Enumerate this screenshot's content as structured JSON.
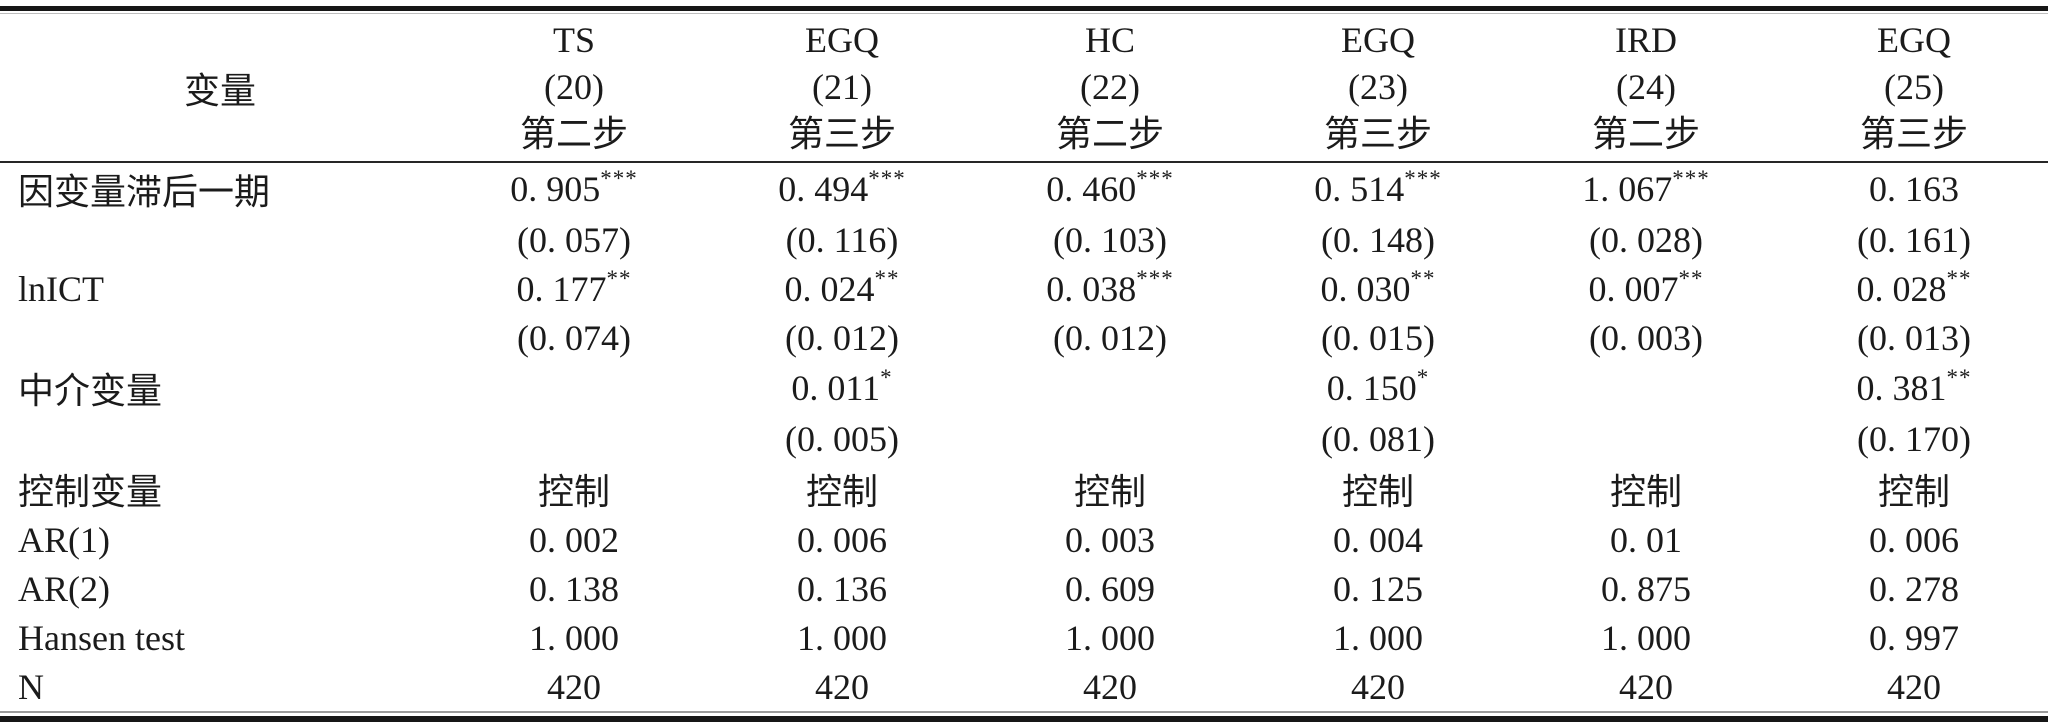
{
  "header": {
    "variable_label": "变量",
    "columns": [
      {
        "model": "TS",
        "num": "(20)",
        "step": "第二步"
      },
      {
        "model": "EGQ",
        "num": "(21)",
        "step": "第三步"
      },
      {
        "model": "HC",
        "num": "(22)",
        "step": "第二步"
      },
      {
        "model": "EGQ",
        "num": "(23)",
        "step": "第三步"
      },
      {
        "model": "IRD",
        "num": "(24)",
        "step": "第二步"
      },
      {
        "model": "EGQ",
        "num": "(25)",
        "step": "第三步"
      }
    ]
  },
  "rows": [
    {
      "label": "因变量滞后一期",
      "cells": [
        {
          "v": "0. 905",
          "sup": "***"
        },
        {
          "v": "0. 494",
          "sup": "***"
        },
        {
          "v": "0. 460",
          "sup": "***"
        },
        {
          "v": "0. 514",
          "sup": "***"
        },
        {
          "v": "1. 067",
          "sup": "***"
        },
        {
          "v": "0. 163",
          "sup": ""
        }
      ]
    },
    {
      "label": "",
      "cells": [
        {
          "v": "(0. 057)",
          "sup": ""
        },
        {
          "v": "(0. 116)",
          "sup": ""
        },
        {
          "v": "(0. 103)",
          "sup": ""
        },
        {
          "v": "(0. 148)",
          "sup": ""
        },
        {
          "v": "(0. 028)",
          "sup": ""
        },
        {
          "v": "(0. 161)",
          "sup": ""
        }
      ]
    },
    {
      "label": "lnICT",
      "cells": [
        {
          "v": "0. 177",
          "sup": "**"
        },
        {
          "v": "0. 024",
          "sup": "**"
        },
        {
          "v": "0. 038",
          "sup": "***"
        },
        {
          "v": "0. 030",
          "sup": "**"
        },
        {
          "v": "0. 007",
          "sup": "**"
        },
        {
          "v": "0. 028",
          "sup": "**"
        }
      ]
    },
    {
      "label": "",
      "cells": [
        {
          "v": "(0. 074)",
          "sup": ""
        },
        {
          "v": "(0. 012)",
          "sup": ""
        },
        {
          "v": "(0. 012)",
          "sup": ""
        },
        {
          "v": "(0. 015)",
          "sup": ""
        },
        {
          "v": "(0. 003)",
          "sup": ""
        },
        {
          "v": "(0. 013)",
          "sup": ""
        }
      ]
    },
    {
      "label": "中介变量",
      "cells": [
        {
          "v": "",
          "sup": ""
        },
        {
          "v": "0. 011",
          "sup": "*"
        },
        {
          "v": "",
          "sup": ""
        },
        {
          "v": "0. 150",
          "sup": "*"
        },
        {
          "v": "",
          "sup": ""
        },
        {
          "v": "0. 381",
          "sup": "**"
        }
      ]
    },
    {
      "label": "",
      "cells": [
        {
          "v": "",
          "sup": ""
        },
        {
          "v": "(0. 005)",
          "sup": ""
        },
        {
          "v": "",
          "sup": ""
        },
        {
          "v": "(0. 081)",
          "sup": ""
        },
        {
          "v": "",
          "sup": ""
        },
        {
          "v": "(0. 170)",
          "sup": ""
        }
      ]
    },
    {
      "label": "控制变量",
      "cells": [
        {
          "v": "控制",
          "sup": ""
        },
        {
          "v": "控制",
          "sup": ""
        },
        {
          "v": "控制",
          "sup": ""
        },
        {
          "v": "控制",
          "sup": ""
        },
        {
          "v": "控制",
          "sup": ""
        },
        {
          "v": "控制",
          "sup": ""
        }
      ]
    },
    {
      "label": "AR(1)",
      "cells": [
        {
          "v": "0. 002",
          "sup": ""
        },
        {
          "v": "0. 006",
          "sup": ""
        },
        {
          "v": "0. 003",
          "sup": ""
        },
        {
          "v": "0. 004",
          "sup": ""
        },
        {
          "v": "0. 01",
          "sup": ""
        },
        {
          "v": "0. 006",
          "sup": ""
        }
      ]
    },
    {
      "label": "AR(2)",
      "cells": [
        {
          "v": "0. 138",
          "sup": ""
        },
        {
          "v": "0. 136",
          "sup": ""
        },
        {
          "v": "0. 609",
          "sup": ""
        },
        {
          "v": "0. 125",
          "sup": ""
        },
        {
          "v": "0. 875",
          "sup": ""
        },
        {
          "v": "0. 278",
          "sup": ""
        }
      ]
    },
    {
      "label": "Hansen test",
      "cells": [
        {
          "v": "1. 000",
          "sup": ""
        },
        {
          "v": "1. 000",
          "sup": ""
        },
        {
          "v": "1. 000",
          "sup": ""
        },
        {
          "v": "1. 000",
          "sup": ""
        },
        {
          "v": "1. 000",
          "sup": ""
        },
        {
          "v": "0. 997",
          "sup": ""
        }
      ]
    },
    {
      "label": "N",
      "cells": [
        {
          "v": "420",
          "sup": ""
        },
        {
          "v": "420",
          "sup": ""
        },
        {
          "v": "420",
          "sup": ""
        },
        {
          "v": "420",
          "sup": ""
        },
        {
          "v": "420",
          "sup": ""
        },
        {
          "v": "420",
          "sup": ""
        }
      ]
    }
  ]
}
